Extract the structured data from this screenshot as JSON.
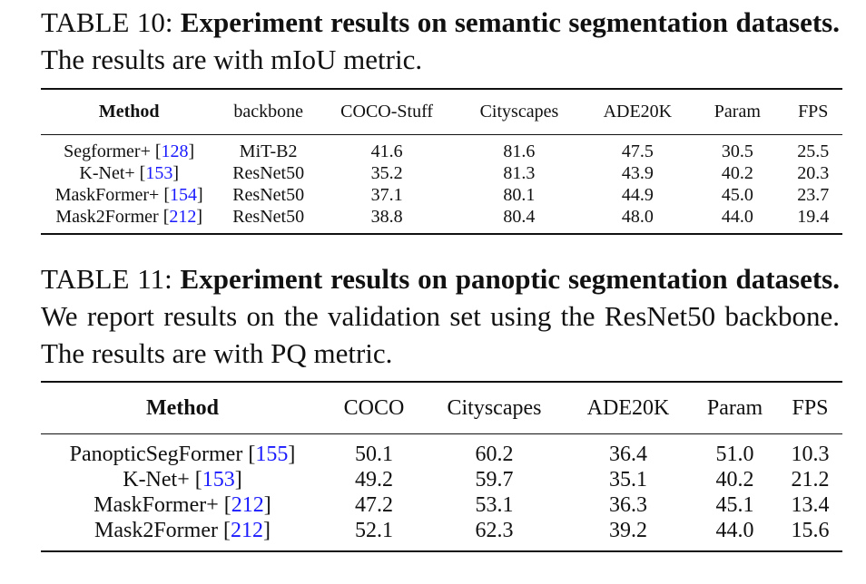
{
  "table10": {
    "caption_label": "TABLE 10:",
    "caption_bold": "Experiment results on semantic segmentation datasets.",
    "caption_rest": "The results are with mIoU metric.",
    "headers": [
      "Method",
      "backbone",
      "COCO-Stuff",
      "Cityscapes",
      "ADE20K",
      "Param",
      "FPS"
    ],
    "rows": [
      {
        "method": "Segformer+",
        "ref": "128",
        "backbone": "MiT-B2",
        "coco_stuff": "41.6",
        "cityscapes": "81.6",
        "ade20k": "47.5",
        "param": "30.5",
        "fps": "25.5"
      },
      {
        "method": "K-Net+",
        "ref": "153",
        "backbone": "ResNet50",
        "coco_stuff": "35.2",
        "cityscapes": "81.3",
        "ade20k": "43.9",
        "param": "40.2",
        "fps": "20.3"
      },
      {
        "method": "MaskFormer+",
        "ref": "154",
        "backbone": "ResNet50",
        "coco_stuff": "37.1",
        "cityscapes": "80.1",
        "ade20k": "44.9",
        "param": "45.0",
        "fps": "23.7"
      },
      {
        "method": "Mask2Former",
        "ref": "212",
        "backbone": "ResNet50",
        "coco_stuff": "38.8",
        "cityscapes": "80.4",
        "ade20k": "48.0",
        "param": "44.0",
        "fps": "19.4"
      }
    ]
  },
  "table11": {
    "caption_label": "TABLE 11:",
    "caption_bold": "Experiment results on panoptic segmentation datasets.",
    "caption_rest": "We report results on the validation set using the ResNet50 backbone. The results are with PQ metric.",
    "headers": [
      "Method",
      "COCO",
      "Cityscapes",
      "ADE20K",
      "Param",
      "FPS"
    ],
    "rows": [
      {
        "method": "PanopticSegFormer",
        "ref": "155",
        "coco": "50.1",
        "cityscapes": "60.2",
        "ade20k": "36.4",
        "param": "51.0",
        "fps": "10.3"
      },
      {
        "method": "K-Net+",
        "ref": "153",
        "coco": "49.2",
        "cityscapes": "59.7",
        "ade20k": "35.1",
        "param": "40.2",
        "fps": "21.2"
      },
      {
        "method": "MaskFormer+",
        "ref": "212",
        "coco": "47.2",
        "cityscapes": "53.1",
        "ade20k": "36.3",
        "param": "45.1",
        "fps": "13.4"
      },
      {
        "method": "Mask2Former",
        "ref": "212",
        "coco": "52.1",
        "cityscapes": "62.3",
        "ade20k": "39.2",
        "param": "44.0",
        "fps": "15.6"
      }
    ]
  },
  "colors": {
    "text": "#111111",
    "citation_link": "#1a1aff",
    "background": "#ffffff"
  }
}
